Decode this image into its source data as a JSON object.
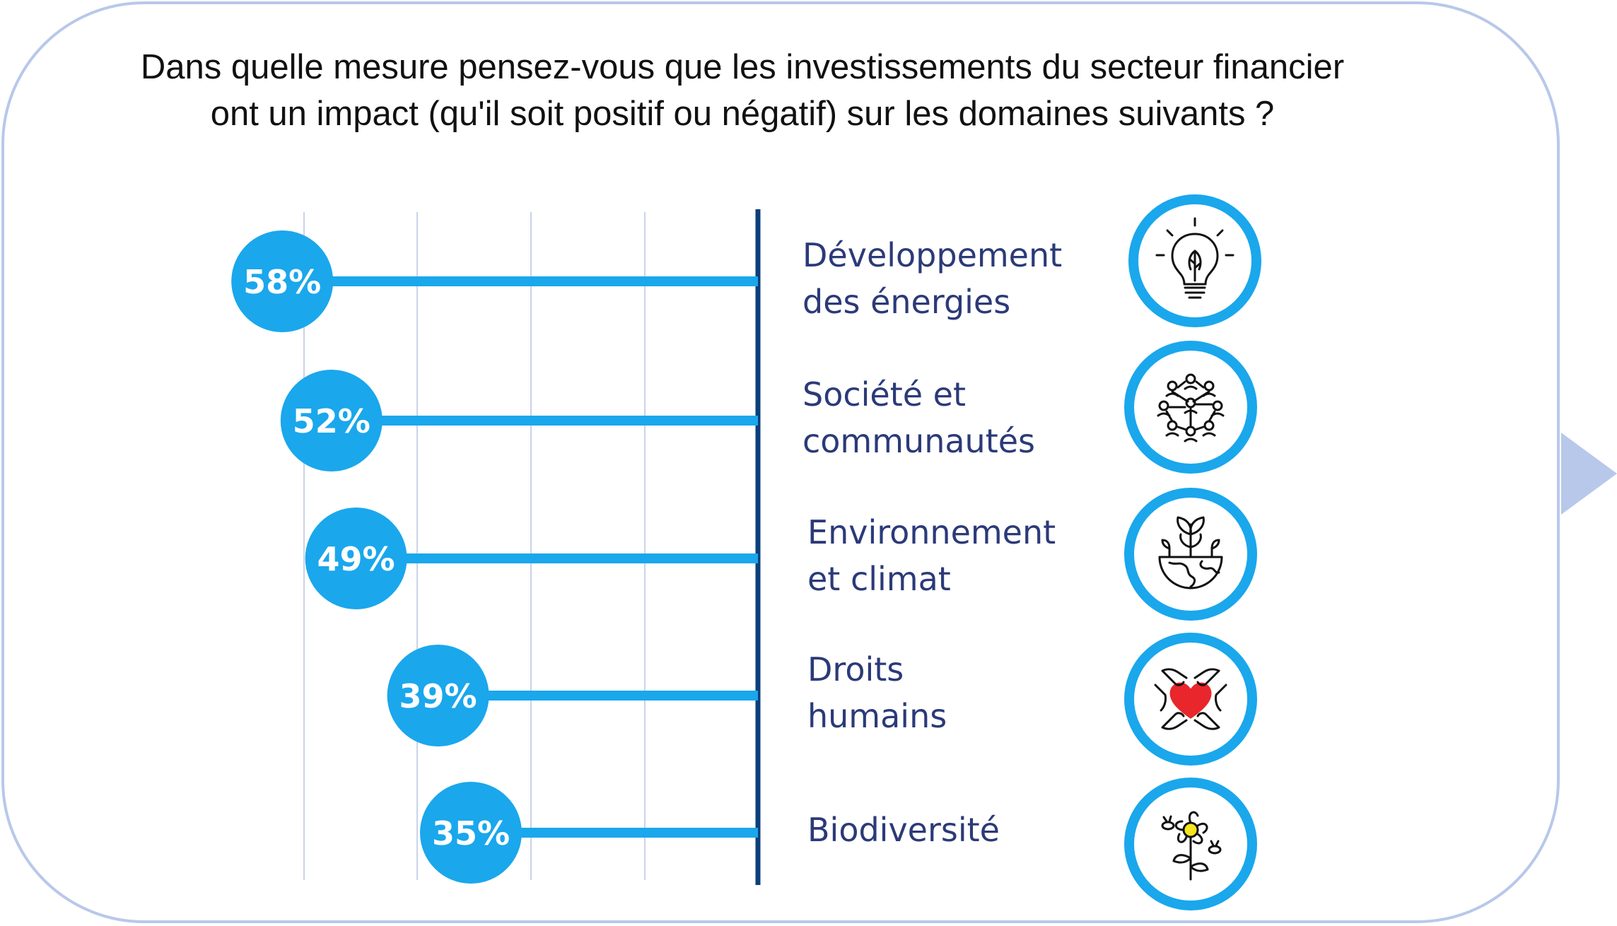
{
  "title": {
    "line1": "Dans quelle mesure pensez-vous que les investissements du secteur financier",
    "line2": "ont un impact (qu'il soit positif ou négatif) sur les domaines suivants ?"
  },
  "colors": {
    "accent": "#1aa7ec",
    "axis": "#0b3f7a",
    "label": "#2b3a78",
    "grid": "#c8d3ea",
    "frame": "#b8c8ea",
    "heart": "#e8262b",
    "flower_center": "#f6e51c"
  },
  "chart_data": {
    "type": "bar",
    "orientation": "horizontal",
    "categories": [
      "Développement\ndes énergies",
      "Société et\ncommunautés",
      "Environnement\net climat",
      "Droits\nhumains",
      "Biodiversité"
    ],
    "values": [
      58,
      52,
      49,
      39,
      35
    ],
    "value_labels": [
      "58%",
      "52%",
      "49%",
      "39%",
      "35%"
    ],
    "icons": [
      "lightbulb-leaf-icon",
      "community-network-icon",
      "earth-plant-icon",
      "hands-heart-icon",
      "flower-bee-icon"
    ],
    "grid": true
  }
}
